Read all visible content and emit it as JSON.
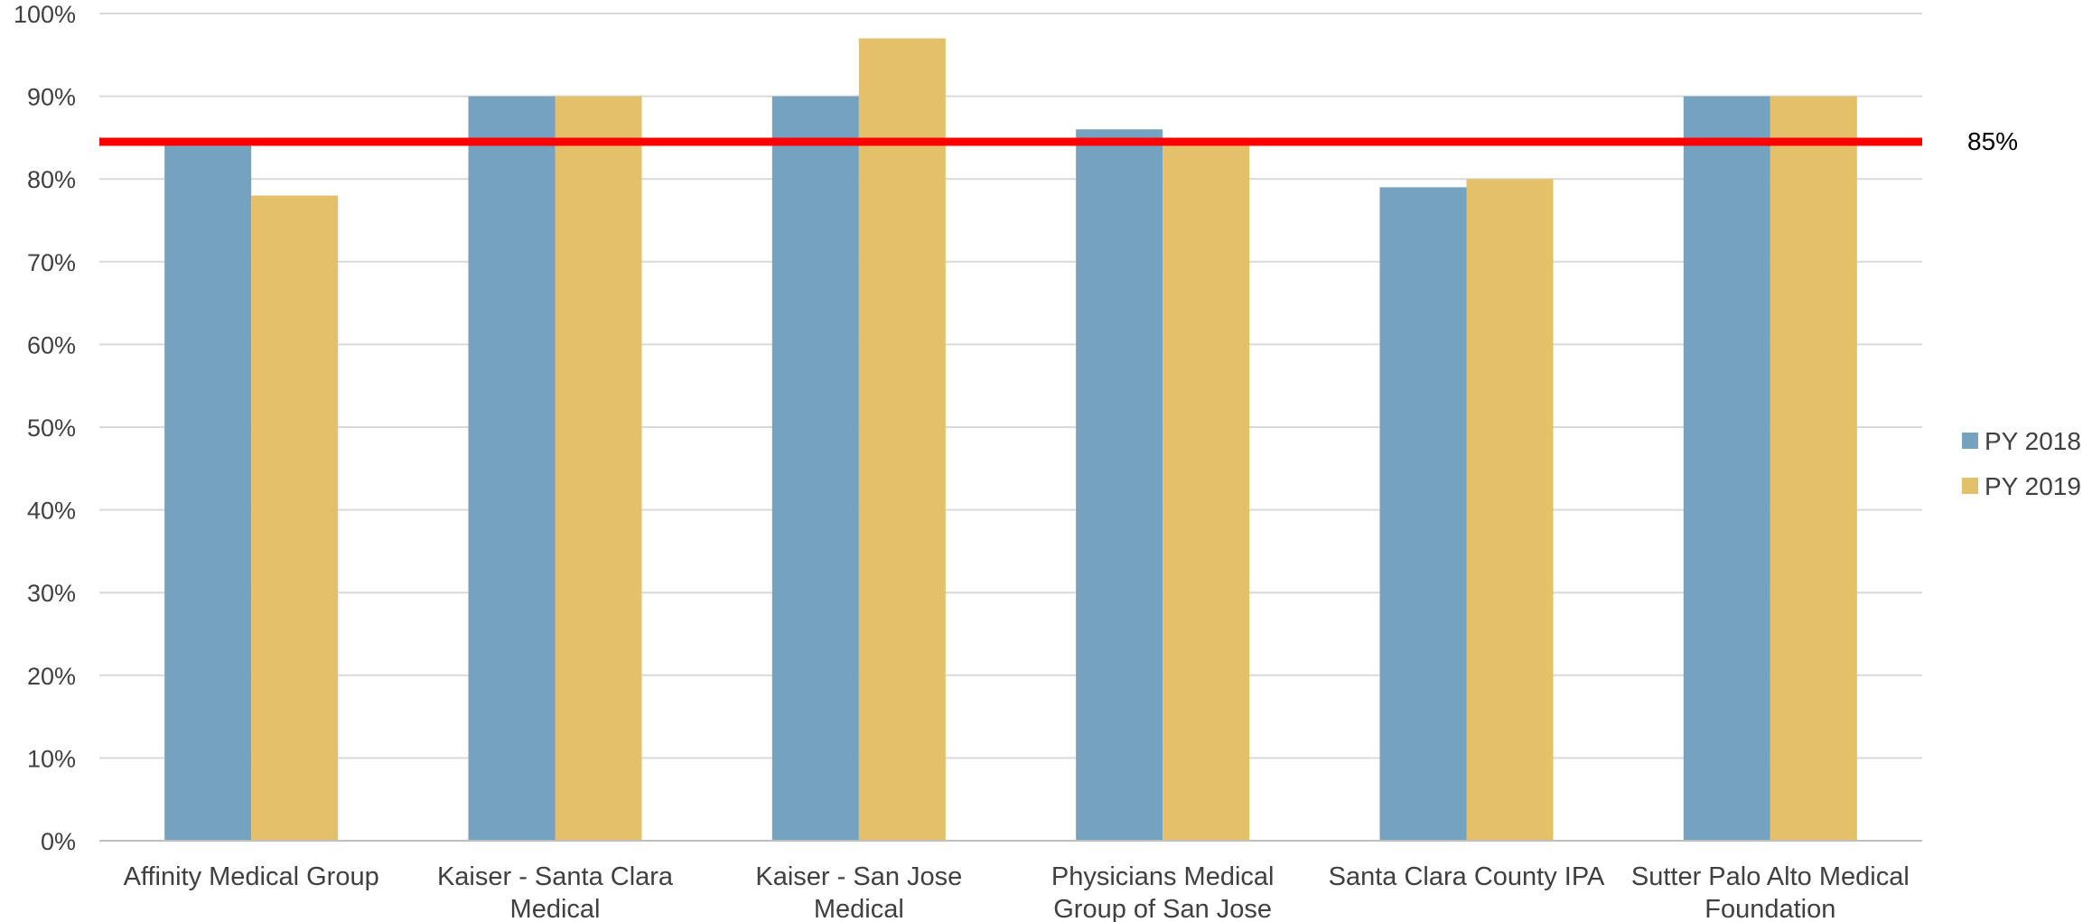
{
  "chart_data": {
    "type": "bar",
    "title": "",
    "xlabel": "",
    "ylabel": "",
    "ylim": [
      0,
      100
    ],
    "ytick_step": 10,
    "ytick_suffix": "%",
    "grid": true,
    "legend_position": "right",
    "categories": [
      [
        "Affinity Medical Group"
      ],
      [
        "Kaiser - Santa Clara",
        "Medical"
      ],
      [
        "Kaiser - San Jose",
        "Medical"
      ],
      [
        "Physicians Medical",
        "Group of San Jose"
      ],
      [
        "Santa Clara County IPA"
      ],
      [
        "Sutter Palo Alto Medical",
        "Foundation"
      ]
    ],
    "series": [
      {
        "name": "PY 2018",
        "color": "#75A2BE",
        "values": [
          84,
          90,
          90,
          86,
          79,
          90
        ]
      },
      {
        "name": "PY 2019",
        "color": "#E5C06A",
        "values": [
          78,
          90,
          97,
          84,
          80,
          90
        ]
      }
    ],
    "reference_line": {
      "value": 84.5,
      "label": "85%",
      "color": "#FF0000"
    },
    "colors": {
      "grid": "#D9D9D9",
      "axis": "#BFBFBF"
    }
  }
}
